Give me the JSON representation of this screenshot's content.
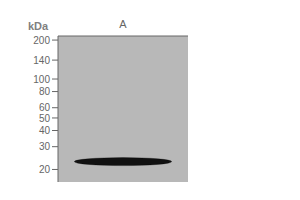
{
  "chart_data": {
    "type": "scatter",
    "categories": [
      "A"
    ],
    "values": [
      23
    ],
    "ylabel": "kDa",
    "log": "y",
    "ylim": [
      16,
      215
    ],
    "yticks": [
      200,
      140,
      100,
      80,
      60,
      50,
      40,
      30,
      20
    ],
    "color": "#111111",
    "marker": "band"
  }
}
